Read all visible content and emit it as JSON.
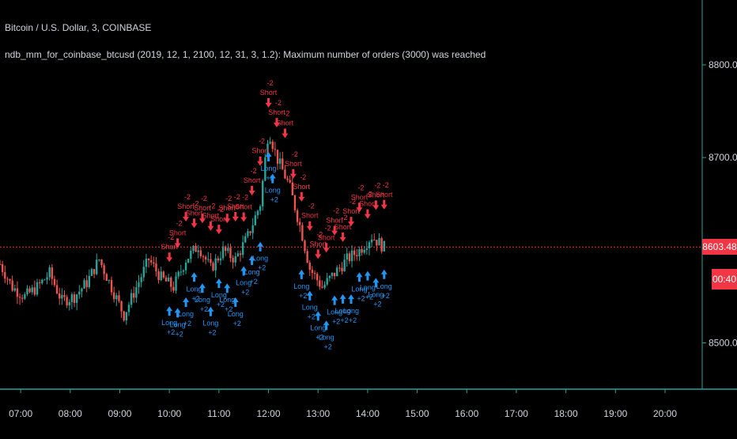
{
  "header": {
    "symbol_title": "Bitcoin / U.S. Dollar, 3, COINBASE",
    "strategy_status": "ndb_mm_for_coinbase_btcusd (2019, 12, 1, 2100, 12, 31, 3, 1.2): Maximum number of orders (3000) was reached"
  },
  "price_axis": {
    "labels": [
      "8800.00",
      "8700.00",
      "8500.00"
    ],
    "current_price": "8603.48",
    "countdown": "00:40"
  },
  "time_axis": {
    "labels": [
      "07:00",
      "08:00",
      "09:00",
      "10:00",
      "11:00",
      "12:00",
      "13:00",
      "14:00",
      "15:00",
      "16:00",
      "17:00",
      "18:00",
      "19:00",
      "20:00"
    ]
  },
  "signals": {
    "long_label": "Long",
    "short_label": "Short",
    "long_qty": "+2",
    "short_qty": "-2"
  },
  "colors": {
    "background": "#000000",
    "up_candle": "#26a69a",
    "down_candle": "#ef5350",
    "long_signal": "#2196f3",
    "short_signal": "#f23645",
    "price_line": "#f23645",
    "axis_border": "#26a69a",
    "axis_text": "#d1d4dc"
  },
  "chart_data": {
    "type": "candlestick",
    "instrument": "Bitcoin / U.S. Dollar",
    "interval_minutes": 3,
    "exchange": "COINBASE",
    "x_range": [
      "06:35",
      "20:45"
    ],
    "y_range": [
      8450,
      8870
    ],
    "close_path": [
      {
        "t": "06:35",
        "p": 8585
      },
      {
        "t": "06:50",
        "p": 8560
      },
      {
        "t": "07:05",
        "p": 8550
      },
      {
        "t": "07:20",
        "p": 8560
      },
      {
        "t": "07:35",
        "p": 8575
      },
      {
        "t": "07:50",
        "p": 8545
      },
      {
        "t": "08:05",
        "p": 8550
      },
      {
        "t": "08:20",
        "p": 8565
      },
      {
        "t": "08:35",
        "p": 8590
      },
      {
        "t": "08:50",
        "p": 8560
      },
      {
        "t": "09:05",
        "p": 8530
      },
      {
        "t": "09:20",
        "p": 8560
      },
      {
        "t": "09:35",
        "p": 8590
      },
      {
        "t": "09:50",
        "p": 8570
      },
      {
        "t": "10:05",
        "p": 8560
      },
      {
        "t": "10:20",
        "p": 8590
      },
      {
        "t": "10:35",
        "p": 8605
      },
      {
        "t": "10:50",
        "p": 8580
      },
      {
        "t": "11:05",
        "p": 8600
      },
      {
        "t": "11:20",
        "p": 8590
      },
      {
        "t": "11:35",
        "p": 8615
      },
      {
        "t": "11:50",
        "p": 8650
      },
      {
        "t": "12:00",
        "p": 8730
      },
      {
        "t": "12:10",
        "p": 8700
      },
      {
        "t": "12:25",
        "p": 8670
      },
      {
        "t": "12:40",
        "p": 8620
      },
      {
        "t": "12:50",
        "p": 8580
      },
      {
        "t": "13:05",
        "p": 8560
      },
      {
        "t": "13:20",
        "p": 8575
      },
      {
        "t": "13:35",
        "p": 8590
      },
      {
        "t": "13:50",
        "p": 8600
      },
      {
        "t": "14:05",
        "p": 8615
      },
      {
        "t": "14:20",
        "p": 8603
      }
    ],
    "current_price": 8603.48,
    "price_ticks": [
      8800,
      8700,
      8500
    ],
    "time_ticks": [
      "07:00",
      "08:00",
      "09:00",
      "10:00",
      "11:00",
      "12:00",
      "13:00",
      "14:00",
      "15:00",
      "16:00",
      "17:00",
      "18:00",
      "19:00",
      "20:00"
    ],
    "long_signals": [
      "10:00",
      "10:10",
      "10:20",
      "10:30",
      "10:40",
      "10:50",
      "11:00",
      "11:10",
      "11:20",
      "11:30",
      "11:40",
      "11:50",
      "12:00",
      "12:05",
      "12:40",
      "12:50",
      "13:00",
      "13:10",
      "13:20",
      "13:30",
      "13:40",
      "13:50",
      "14:00",
      "14:10",
      "14:20"
    ],
    "short_signals": [
      "10:00",
      "10:10",
      "10:20",
      "10:30",
      "10:40",
      "10:50",
      "11:00",
      "11:10",
      "11:20",
      "11:30",
      "11:40",
      "11:50",
      "12:00",
      "12:10",
      "12:20",
      "12:30",
      "12:40",
      "12:50",
      "13:00",
      "13:10",
      "13:20",
      "13:30",
      "13:40",
      "13:50",
      "14:00",
      "14:10",
      "14:20"
    ],
    "grid": false
  }
}
